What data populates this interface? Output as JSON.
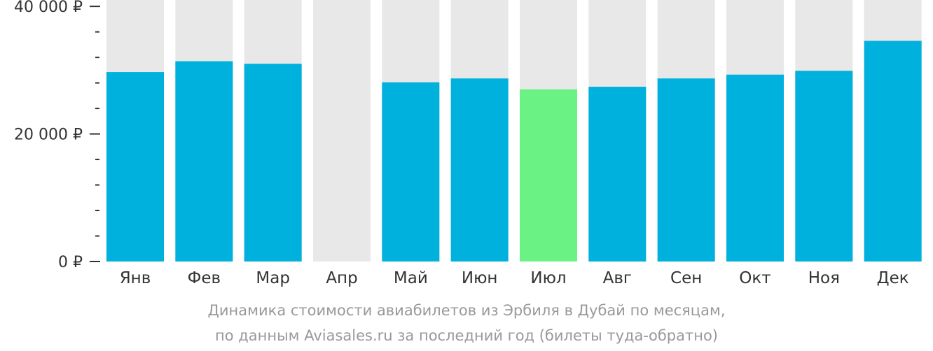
{
  "chart_data": {
    "type": "bar",
    "categories": [
      "Янв",
      "Фев",
      "Мар",
      "Апр",
      "Май",
      "Июн",
      "Июл",
      "Авг",
      "Сен",
      "Окт",
      "Ноя",
      "Дек"
    ],
    "values": [
      29700,
      31400,
      31000,
      null,
      28100,
      28700,
      27000,
      27400,
      28700,
      29300,
      29900,
      34600
    ],
    "highlight_index": 6,
    "ylim": [
      0,
      41000
    ],
    "y_tick_labels": [
      {
        "value": 0,
        "label": "0 ₽"
      },
      {
        "value": 20000,
        "label": "20 000 ₽"
      },
      {
        "value": 40000,
        "label": "40 000 ₽"
      }
    ],
    "minor_tick_step": 4000,
    "colors": {
      "bar": "#00B0DD",
      "highlight": "#6AF285",
      "background_bar": "#E8E8E8",
      "axis_text": "#333333",
      "caption": "#999999"
    }
  },
  "caption": {
    "line1": "Динамика стоимости авиабилетов из Эрбиля в Дубай по месяцам,",
    "line2": "по данным Aviasales.ru за последний год (билеты туда-обратно)"
  }
}
